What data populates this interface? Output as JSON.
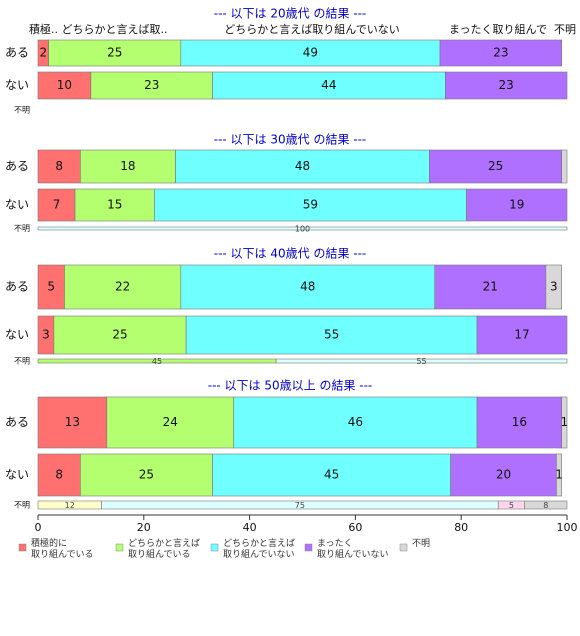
{
  "chart_data": {
    "type": "bar",
    "orientation": "horizontal-stacked",
    "xlim": [
      0,
      100
    ],
    "x_ticks": [
      0,
      20,
      40,
      60,
      80,
      100
    ],
    "row_labels": [
      "ある",
      "ない",
      "不明"
    ],
    "colors": {
      "category_1": "#ff7070",
      "category_2": "#b3ff70",
      "category_3": "#70ffff",
      "category_4": "#b070ff",
      "category_5": "#d8d8d8",
      "thin_bar_category_1": "#ffffcc",
      "thin_bar_category_3": "#ddffff",
      "thin_bar_category_4": "#ffd6ee",
      "title": "#0000cc"
    },
    "legend": [
      "積極的に\n取り組んでいる",
      "どちらかと言えば\n取り組んでいる",
      "どちらかと言えば\n取り組んでいない",
      "まったく\n取り組んでいない",
      "不明"
    ],
    "header_labels": [
      "積極.. どちらかと言えば取..",
      "どちらかと言えば取り組んでいない",
      "まったく取り組んで",
      "不明"
    ],
    "panels": [
      {
        "title": "--- 以下は 20歳代 の結果 ---",
        "rows": [
          {
            "label": "ある",
            "values": [
              2,
              25,
              49,
              23,
              0
            ],
            "labels": [
              "2",
              "25",
              "49",
              "23",
              ""
            ]
          },
          {
            "label": "ない",
            "values": [
              10,
              23,
              44,
              23,
              0
            ],
            "labels": [
              "10",
              "23",
              "44",
              "23",
              ""
            ]
          },
          {
            "label": "不明",
            "values": [
              0,
              0,
              0,
              0,
              0
            ],
            "labels": [
              "",
              "",
              "",
              "",
              ""
            ]
          }
        ]
      },
      {
        "title": "--- 以下は 30歳代 の結果 ---",
        "rows": [
          {
            "label": "ある",
            "values": [
              8,
              18,
              48,
              25,
              1
            ],
            "labels": [
              "8",
              "18",
              "48",
              "25",
              ""
            ]
          },
          {
            "label": "ない",
            "values": [
              7,
              15,
              59,
              19,
              0
            ],
            "labels": [
              "7",
              "15",
              "59",
              "19",
              ""
            ]
          },
          {
            "label": "不明",
            "values": [
              0,
              0,
              100,
              0,
              0
            ],
            "labels": [
              "",
              "",
              "100",
              "",
              ""
            ]
          }
        ]
      },
      {
        "title": "--- 以下は 40歳代 の結果 ---",
        "rows": [
          {
            "label": "ある",
            "values": [
              5,
              22,
              48,
              21,
              3
            ],
            "labels": [
              "5",
              "22",
              "48",
              "21",
              "3"
            ]
          },
          {
            "label": "ない",
            "values": [
              3,
              25,
              55,
              17,
              0
            ],
            "labels": [
              "3",
              "25",
              "55",
              "17",
              ""
            ]
          },
          {
            "label": "不明",
            "values": [
              0,
              45,
              55,
              0,
              0
            ],
            "labels": [
              "",
              "45",
              "55",
              "",
              ""
            ]
          }
        ]
      },
      {
        "title": "--- 以下は 50歳以上 の結果 ---",
        "rows": [
          {
            "label": "ある",
            "values": [
              13,
              24,
              46,
              16,
              1
            ],
            "labels": [
              "13",
              "24",
              "46",
              "16",
              "1"
            ]
          },
          {
            "label": "ない",
            "values": [
              8,
              25,
              45,
              20,
              1
            ],
            "labels": [
              "8",
              "25",
              "45",
              "20",
              "1"
            ]
          },
          {
            "label": "不明",
            "values": [
              12,
              0,
              75,
              5,
              8
            ],
            "labels": [
              "12",
              "",
              "75",
              "5",
              "8"
            ]
          }
        ]
      }
    ]
  }
}
